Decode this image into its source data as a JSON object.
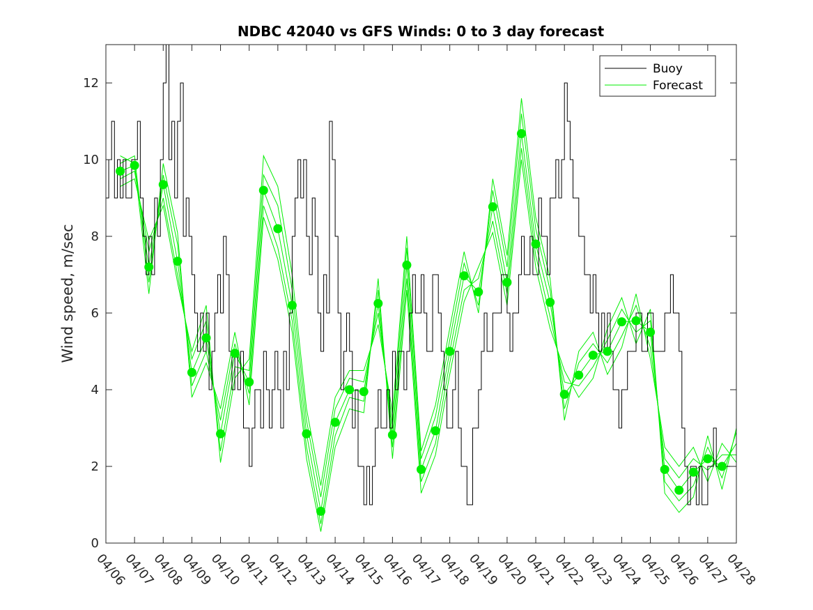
{
  "chart_data": {
    "type": "line",
    "title": "NDBC 42040 vs GFS Winds: 0 to 3 day forecast",
    "xlabel": "",
    "ylabel": "Wind speed, m/sec",
    "x_tick_labels": [
      "04/06",
      "04/07",
      "04/08",
      "04/09",
      "04/10",
      "04/11",
      "04/12",
      "04/13",
      "04/14",
      "04/15",
      "04/16",
      "04/17",
      "04/18",
      "04/19",
      "04/20",
      "04/21",
      "04/22",
      "04/23",
      "04/24",
      "04/25",
      "04/26",
      "04/27",
      "04/28"
    ],
    "xlim_days": [
      0,
      22
    ],
    "ylim": [
      0,
      13
    ],
    "y_ticks": [
      0,
      2,
      4,
      6,
      8,
      10,
      12
    ],
    "grid": false,
    "legend": {
      "position": "top-right",
      "entries": [
        "Buoy",
        "Forecast"
      ]
    },
    "colors": {
      "buoy": "#000000",
      "forecast": "#00ee00"
    },
    "series": [
      {
        "name": "Buoy",
        "x_days": [
          0,
          0.1,
          0.2,
          0.3,
          0.4,
          0.5,
          0.6,
          0.7,
          0.8,
          0.9,
          1,
          1.1,
          1.2,
          1.3,
          1.4,
          1.5,
          1.6,
          1.7,
          1.8,
          1.9,
          2,
          2.1,
          2.2,
          2.3,
          2.4,
          2.5,
          2.6,
          2.7,
          2.8,
          2.9,
          3,
          3.1,
          3.2,
          3.3,
          3.4,
          3.5,
          3.6,
          3.7,
          3.8,
          3.9,
          4,
          4.1,
          4.2,
          4.3,
          4.4,
          4.5,
          4.6,
          4.7,
          4.8,
          4.9,
          5,
          5.1,
          5.2,
          5.3,
          5.4,
          5.5,
          5.6,
          5.7,
          5.8,
          5.9,
          6,
          6.1,
          6.2,
          6.3,
          6.4,
          6.5,
          6.6,
          6.7,
          6.8,
          6.9,
          7,
          7.1,
          7.2,
          7.3,
          7.4,
          7.5,
          7.6,
          7.7,
          7.8,
          7.9,
          8,
          8.1,
          8.2,
          8.3,
          8.4,
          8.5,
          8.6,
          8.7,
          8.8,
          8.9,
          9,
          9.1,
          9.2,
          9.3,
          9.4,
          9.5,
          9.6,
          9.7,
          9.8,
          9.9,
          10,
          10.1,
          10.2,
          10.3,
          10.4,
          10.5,
          10.6,
          10.7,
          10.8,
          10.9,
          11,
          11.1,
          11.2,
          11.3,
          11.4,
          11.5,
          11.6,
          11.7,
          11.8,
          11.9,
          12,
          12.1,
          12.2,
          12.3,
          12.4,
          12.5,
          12.6,
          12.7,
          12.8,
          12.9,
          13,
          13.1,
          13.2,
          13.3,
          13.4,
          13.5,
          13.6,
          13.7,
          13.8,
          13.9,
          14,
          14.1,
          14.2,
          14.3,
          14.4,
          14.5,
          14.6,
          14.7,
          14.8,
          14.9,
          15,
          15.1,
          15.2,
          15.3,
          15.4,
          15.5,
          15.6,
          15.7,
          15.8,
          15.9,
          16,
          16.1,
          16.2,
          16.3,
          16.4,
          16.5,
          16.6,
          16.7,
          16.8,
          16.9,
          17,
          17.1,
          17.2,
          17.3,
          17.4,
          17.5,
          17.6,
          17.7,
          17.8,
          17.9,
          18,
          18.1,
          18.2,
          18.3,
          18.4,
          18.5,
          18.6,
          18.7,
          18.8,
          18.9,
          19,
          19.1,
          19.2,
          19.3,
          19.4,
          19.5,
          19.6,
          19.7,
          19.8,
          19.9,
          20,
          20.1,
          20.2,
          20.3,
          20.4,
          20.5,
          20.6,
          20.7,
          20.8,
          20.9,
          21,
          21.1,
          21.2,
          21.3,
          21.4,
          21.5,
          21.6,
          21.7,
          21.8,
          21.9,
          22
        ],
        "values": [
          9,
          10,
          11,
          9,
          10,
          9,
          10,
          9,
          9,
          10,
          10,
          11,
          9,
          8,
          7,
          8,
          7,
          9,
          8,
          10,
          12,
          13,
          10,
          11,
          9,
          11,
          12,
          8,
          9,
          8,
          7,
          6,
          5,
          6,
          5,
          6,
          4,
          5,
          6,
          7,
          6,
          8,
          7,
          5,
          4,
          5,
          4,
          5,
          3,
          3,
          2,
          3,
          4,
          4,
          3,
          5,
          4,
          3,
          4,
          5,
          4,
          3,
          5,
          4,
          6,
          8,
          9,
          10,
          9,
          10,
          8,
          7,
          9,
          8,
          6,
          5,
          7,
          6,
          11,
          10,
          8,
          6,
          4,
          5,
          6,
          5,
          3,
          4,
          2,
          2,
          1,
          2,
          1,
          2,
          3,
          4,
          3,
          3,
          4,
          3,
          5,
          4,
          5,
          5,
          4,
          5,
          6,
          7,
          6,
          6,
          7,
          6,
          5,
          5,
          7,
          7,
          6,
          5,
          4,
          3,
          3,
          4,
          5,
          3,
          2,
          2,
          1,
          1,
          3,
          3,
          4,
          5,
          6,
          5,
          5,
          6,
          6,
          6,
          7,
          7,
          6,
          5,
          6,
          6,
          7,
          8,
          7,
          7,
          8,
          7,
          7,
          9,
          8,
          8,
          7,
          9,
          9,
          10,
          9,
          10,
          12,
          11,
          10,
          9,
          9,
          8,
          8,
          7,
          7,
          6,
          7,
          6,
          5,
          6,
          5,
          6,
          5,
          4,
          4,
          3,
          4,
          4,
          5,
          5,
          5,
          6,
          6,
          5,
          5,
          6,
          6,
          5,
          5,
          5,
          5,
          6,
          6,
          7,
          6,
          6,
          5,
          3,
          2,
          1,
          2,
          2,
          1,
          2,
          1,
          1,
          2,
          2,
          3,
          2,
          2,
          2,
          2,
          2,
          2,
          2,
          2
        ]
      },
      {
        "name": "Forecast",
        "x_days": [
          0.5,
          1,
          1.5,
          2,
          2.5,
          3,
          3.5,
          4,
          4.5,
          5,
          5.5,
          6,
          6.5,
          7,
          7.5,
          8,
          8.5,
          9,
          9.5,
          10,
          10.5,
          11,
          11.5,
          12,
          12.5,
          13,
          13.5,
          14,
          14.5,
          15,
          15.5,
          16,
          16.5,
          17,
          17.5,
          18,
          18.5,
          19,
          19.5,
          20,
          20.5,
          21,
          21.5,
          22
        ],
        "values": [
          9.7,
          9.85,
          7.2,
          9.35,
          7.35,
          4.45,
          5.35,
          2.85,
          4.95,
          4.2,
          9.2,
          8.2,
          6.2,
          2.85,
          0.83,
          3.15,
          4.0,
          3.95,
          6.25,
          2.82,
          7.25,
          1.92,
          2.93,
          5.0,
          6.97,
          6.55,
          8.77,
          6.8,
          10.68,
          7.8,
          6.28,
          3.88,
          4.38,
          4.9,
          5.0,
          5.77,
          5.8,
          5.5,
          1.92,
          1.38,
          1.85,
          2.2,
          2.0,
          2.6
        ]
      }
    ],
    "forecast_runs_extra": [
      [
        9.5,
        9.7,
        7.6,
        9.0,
        7.0,
        4.8,
        5.8,
        2.4,
        4.6,
        4.5,
        9.6,
        8.8,
        6.6,
        3.2,
        1.2,
        3.5,
        4.3,
        4.2,
        6.0,
        3.1,
        7.7,
        2.2,
        3.3,
        5.3,
        7.3,
        6.2,
        9.2,
        7.2,
        11.2,
        8.2,
        6.6,
        3.5,
        4.7,
        5.2,
        4.7,
        5.4,
        6.2,
        5.1,
        2.2,
        1.7,
        2.2,
        1.9,
        2.3,
        2.3
      ],
      [
        9.9,
        10.1,
        6.8,
        9.6,
        7.8,
        4.1,
        5.0,
        3.2,
        5.2,
        3.9,
        8.8,
        7.7,
        5.8,
        2.5,
        0.5,
        2.8,
        3.8,
        3.7,
        6.6,
        2.5,
        6.9,
        1.6,
        2.6,
        4.7,
        6.6,
        6.9,
        8.4,
        6.5,
        10.3,
        7.5,
        5.9,
        4.2,
        4.1,
        4.6,
        5.3,
        6.1,
        5.5,
        5.8,
        1.6,
        1.1,
        1.5,
        2.5,
        1.7,
        2.9
      ],
      [
        9.3,
        9.5,
        7.9,
        8.8,
        6.8,
        5.0,
        6.2,
        2.1,
        4.3,
        4.8,
        10.1,
        9.3,
        7.0,
        3.5,
        1.5,
        3.8,
        4.5,
        4.5,
        5.7,
        3.4,
        8.0,
        2.4,
        3.6,
        5.6,
        7.6,
        6.0,
        9.5,
        7.5,
        11.6,
        8.5,
        6.9,
        3.2,
        5.0,
        5.5,
        4.4,
        5.1,
        6.5,
        4.8,
        2.5,
        2.0,
        2.5,
        1.6,
        2.6,
        2.1
      ],
      [
        10.1,
        9.9,
        6.5,
        9.9,
        8.1,
        3.8,
        4.7,
        3.5,
        5.5,
        3.6,
        8.5,
        7.4,
        5.5,
        2.2,
        0.3,
        2.5,
        3.5,
        3.4,
        6.9,
        2.2,
        6.6,
        1.3,
        2.3,
        4.4,
        6.3,
        7.2,
        8.1,
        6.2,
        10.0,
        7.2,
        5.6,
        4.5,
        3.8,
        4.3,
        5.6,
        6.4,
        5.2,
        6.1,
        1.3,
        0.8,
        1.2,
        2.8,
        1.4,
        3.0
      ]
    ]
  }
}
